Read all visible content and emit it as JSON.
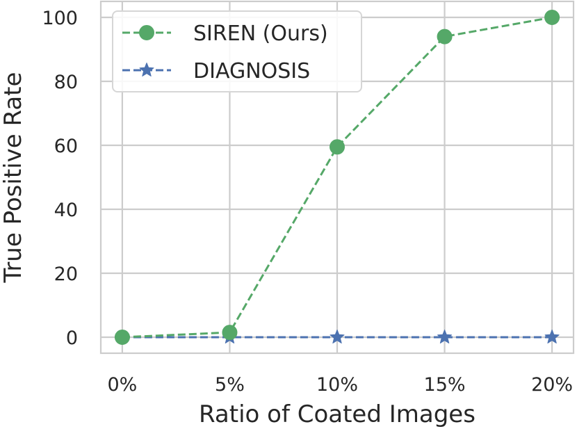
{
  "chart_data": {
    "type": "line",
    "xlabel": "Ratio of Coated Images",
    "ylabel": "True Positive Rate",
    "categories": [
      "0%",
      "5%",
      "10%",
      "15%",
      "20%"
    ],
    "x": [
      0,
      5,
      10,
      15,
      20
    ],
    "xlim": [
      -1,
      21
    ],
    "ylim": [
      -5,
      105
    ],
    "yticks": [
      0,
      20,
      40,
      60,
      80,
      100
    ],
    "ytick_labels": [
      "0",
      "20",
      "40",
      "60",
      "80",
      "100"
    ],
    "grid": true,
    "legend_position": "top-left",
    "series": [
      {
        "name": "SIREN (Ours)",
        "values": [
          0,
          1.5,
          59.5,
          94,
          100
        ],
        "color": "#55a868",
        "marker": "circle",
        "linestyle": "dashed"
      },
      {
        "name": "DIAGNOSIS",
        "values": [
          0,
          0,
          0,
          0,
          0
        ],
        "color": "#4c72b0",
        "marker": "star",
        "linestyle": "dashed"
      }
    ]
  }
}
